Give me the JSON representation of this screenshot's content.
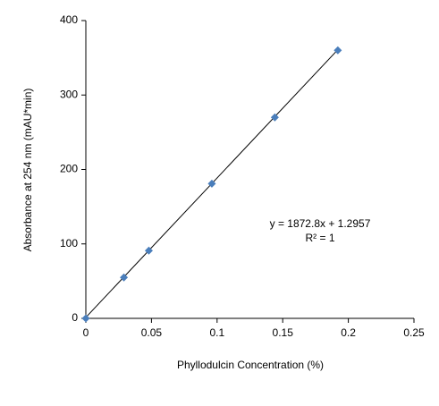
{
  "chart_data": {
    "type": "scatter",
    "xlabel": "Phyllodulcin  Concentration  (%)",
    "ylabel": "Absorbance  at 254  nm  (mAU*min)",
    "series": [
      {
        "name": "Absorbance",
        "color": "#4a7ebb",
        "x": [
          0,
          0.029,
          0.048,
          0.096,
          0.144,
          0.192
        ],
        "values": [
          0,
          55,
          91,
          181,
          270,
          360
        ]
      }
    ],
    "trendline": {
      "slope": 1872.8,
      "intercept": 1.2957,
      "color": "#000000"
    },
    "annotations": [
      "y = 1872.8x + 1.2957",
      "R² = 1"
    ],
    "xlim": [
      0,
      0.25
    ],
    "xticks": [
      0,
      0.05,
      0.1,
      0.15,
      0.2,
      0.25
    ],
    "ylim": [
      0,
      400
    ],
    "yticks": [
      0,
      100,
      200,
      300,
      400
    ],
    "grid": false
  }
}
